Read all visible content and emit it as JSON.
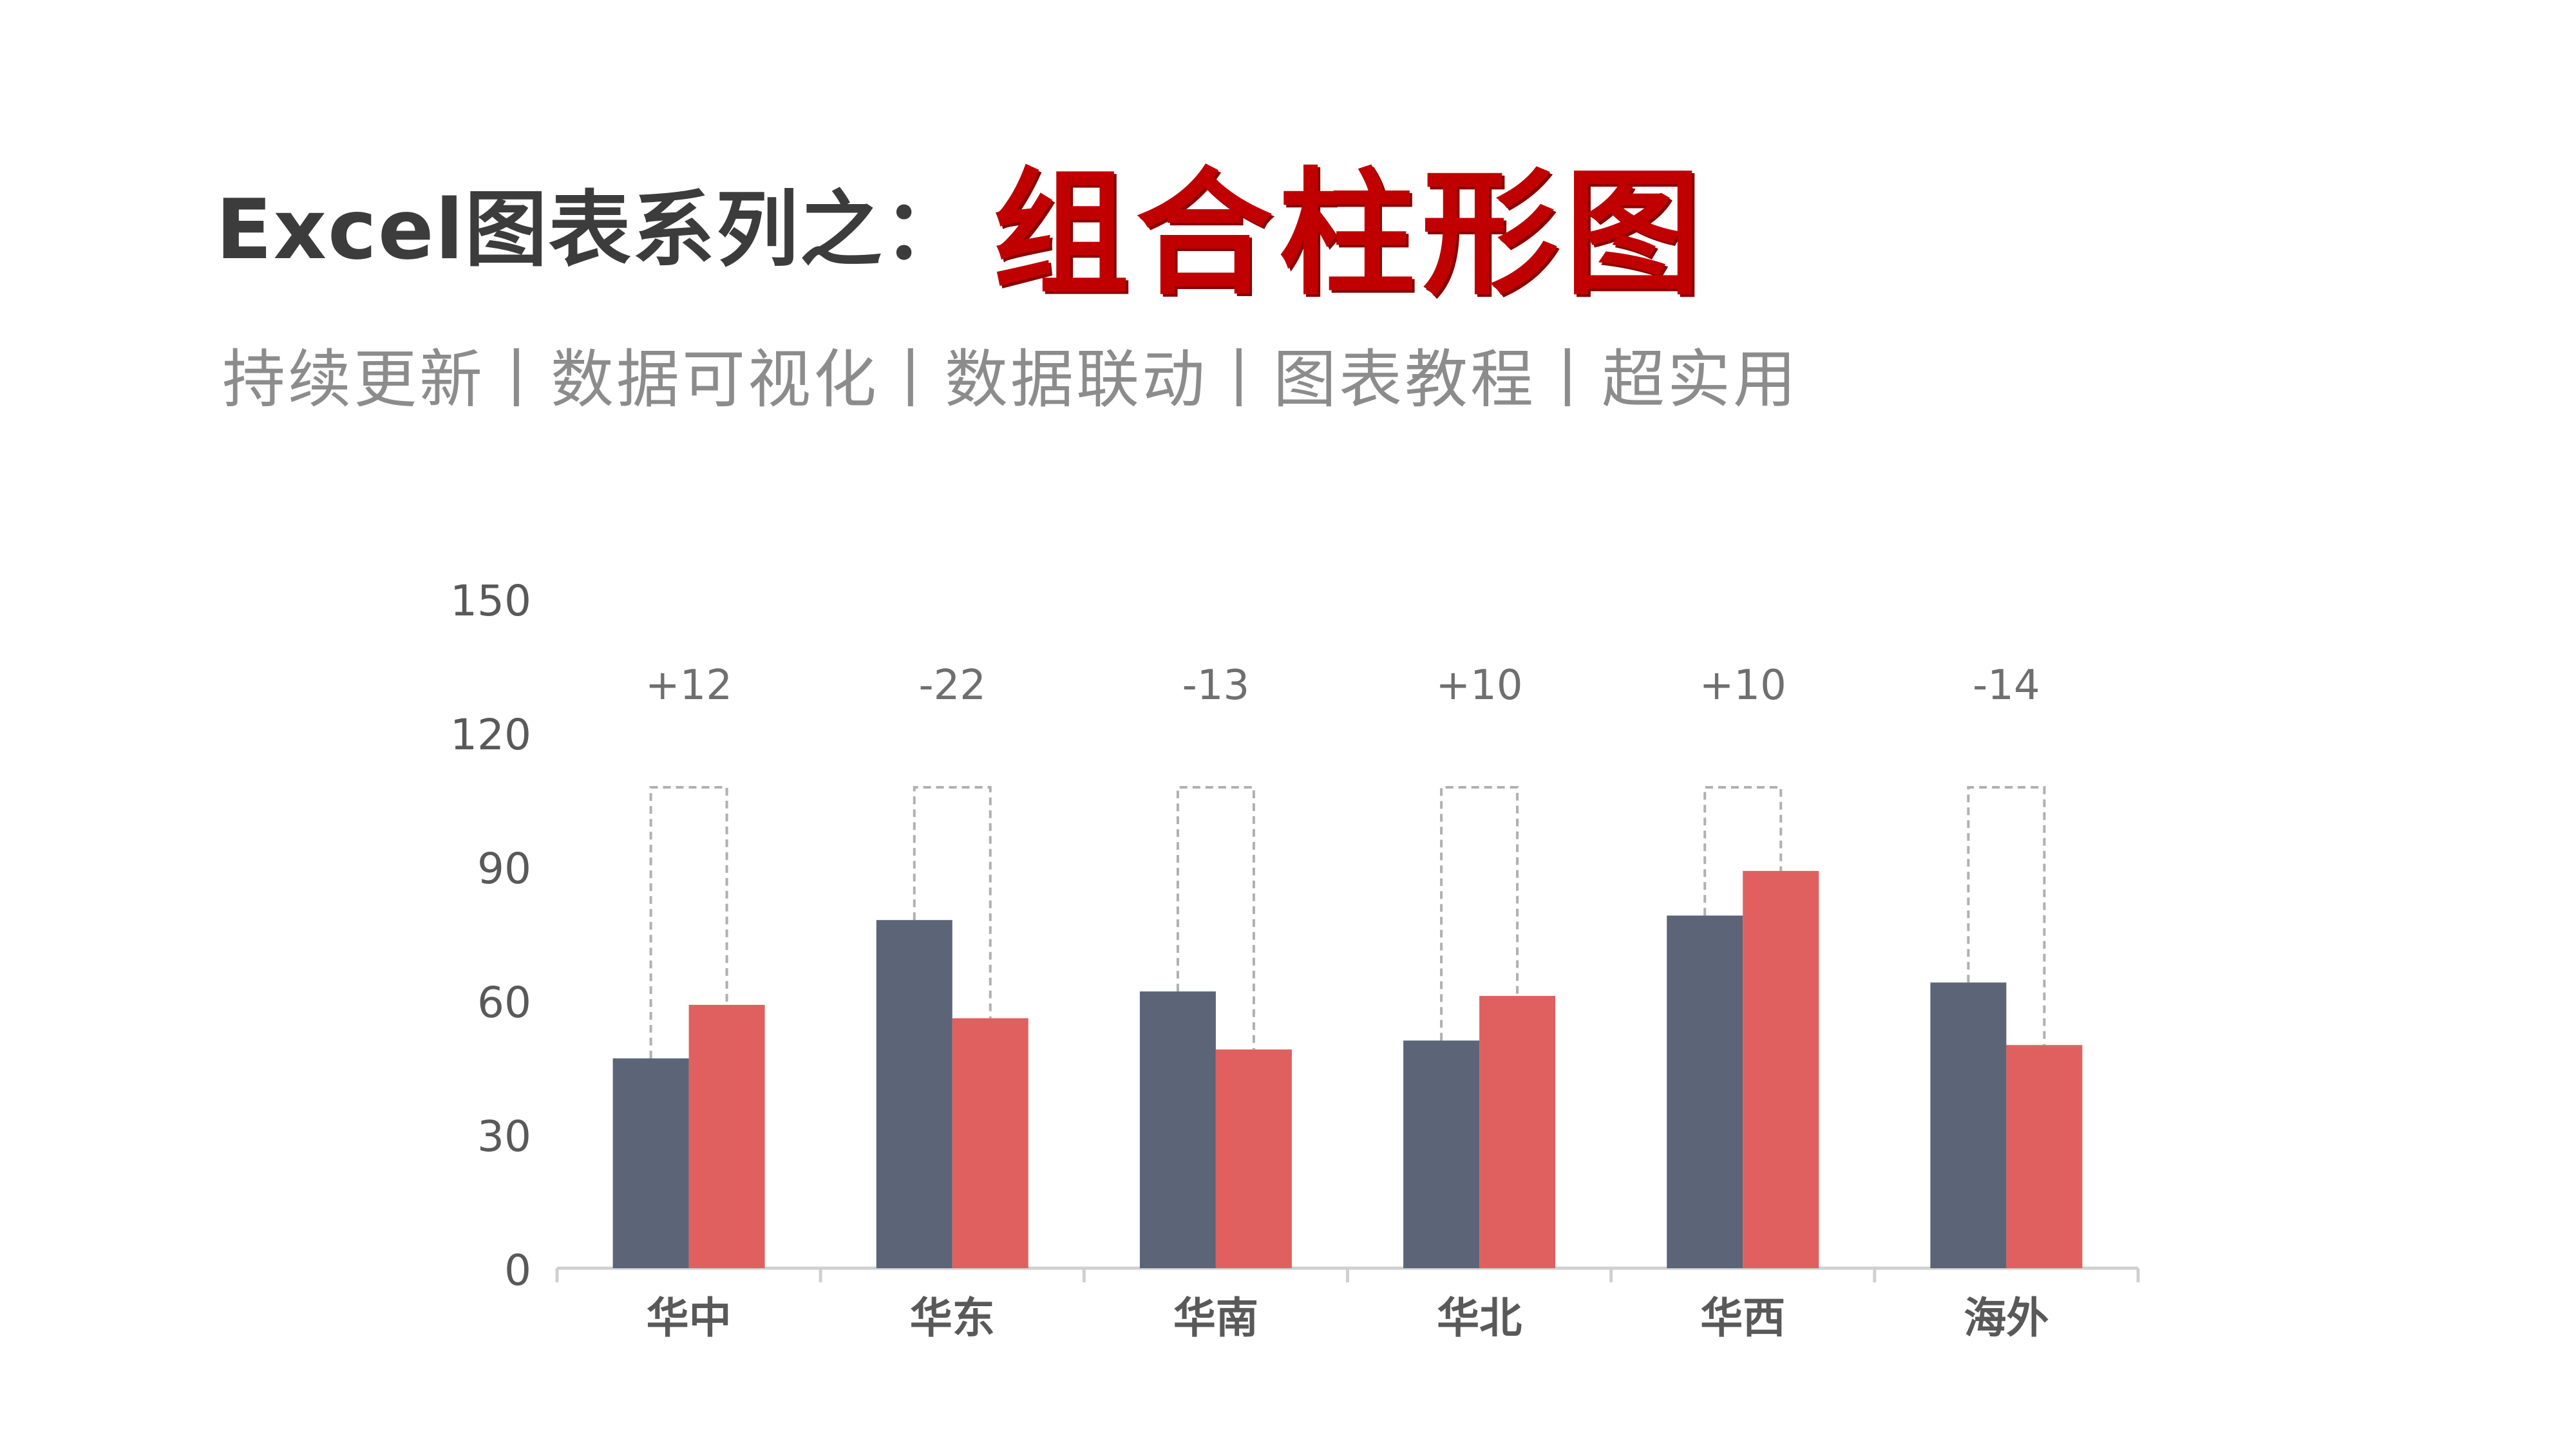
{
  "header": {
    "title_main": "Excel图表系列之：",
    "title_accent": "组合柱形图",
    "subtitle": "持续更新丨数据可视化丨数据联动丨图表教程丨超实用"
  },
  "colors": {
    "series1": "#5b6577",
    "series2": "#e06060",
    "axis": "#d0d0d0",
    "text": "#595959",
    "connector": "#b0b0b0"
  },
  "chart_data": {
    "type": "bar",
    "categories": [
      "华中",
      "华东",
      "华南",
      "华北",
      "华西",
      "海外"
    ],
    "series": [
      {
        "values": [
          47,
          78,
          62,
          51,
          79,
          64
        ]
      },
      {
        "values": [
          59,
          56,
          49,
          61,
          89,
          50
        ]
      }
    ],
    "annotations": [
      "+12",
      "-22",
      "-13",
      "+10",
      "+10",
      "-14"
    ],
    "y_ticks": [
      0,
      30,
      60,
      90,
      120,
      150
    ],
    "ylim": [
      0,
      150
    ],
    "grid": false,
    "legend": "none"
  }
}
